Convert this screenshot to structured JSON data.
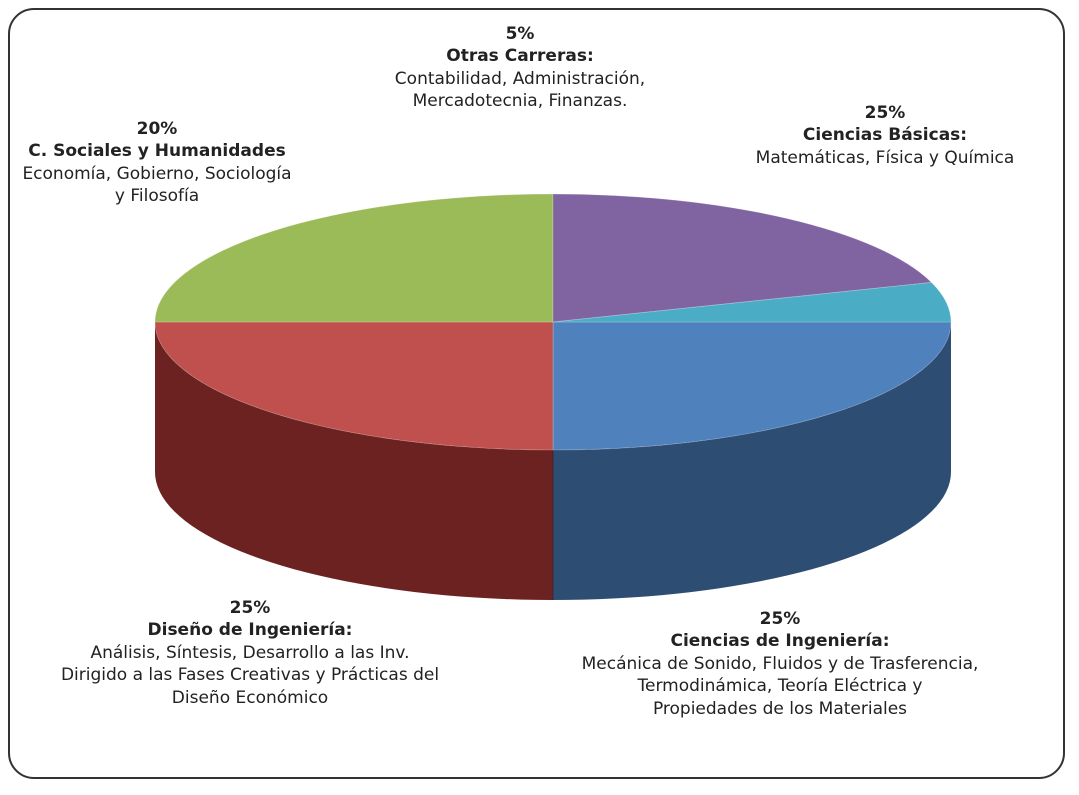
{
  "chart_data": {
    "type": "pie",
    "style": "3d",
    "slices": [
      {
        "percent": "25%",
        "value": 25,
        "name": "Ciencias Básicas:",
        "details": "Matemáticas, Física y Química",
        "color": "#4f81bd",
        "side_color": "#2e4d73"
      },
      {
        "percent": "25%",
        "value": 25,
        "name": "Ciencias de Ingeniería:",
        "details": "Mecánica de Sonido, Fluidos y de Trasferencia,\nTermodinámica, Teoría Eléctrica y\nPropiedades de los Materiales",
        "color": "#c0504d",
        "side_color": "#6b2220"
      },
      {
        "percent": "25%",
        "value": 25,
        "name": "Diseño de Ingeniería:",
        "details": "Análisis, Síntesis, Desarrollo a las Inv.\nDirigido a las Fases Creativas y Prácticas del\nDiseño Económico",
        "color": "#9bbb59",
        "side_color": "#5f7a2c"
      },
      {
        "percent": "20%",
        "value": 20,
        "name": "C. Sociales y Humanidades",
        "details": "Economía, Gobierno, Sociología\ny Filosofía",
        "color": "#8064a2",
        "side_color": "#4b3a61"
      },
      {
        "percent": "5%",
        "value": 5,
        "name": "Otras Carreras:",
        "details": "Contabilidad, Administración,\nMercadotecnia, Finanzas.",
        "color": "#4bacc6",
        "side_color": "#2a6c7e"
      }
    ]
  }
}
